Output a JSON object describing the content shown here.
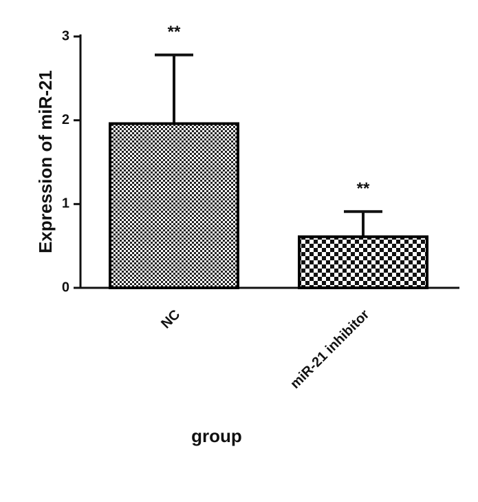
{
  "chart_data": {
    "type": "bar",
    "categories": [
      "NC",
      "miR-21 inhibitor"
    ],
    "values": [
      1.96,
      0.61
    ],
    "errors": [
      0.82,
      0.3
    ],
    "annotations": [
      "**",
      "**"
    ],
    "color": "#000000",
    "xlabel": "group",
    "ylabel": "Expression of miR-21",
    "ylim": [
      0,
      3
    ],
    "yticks": [
      0,
      1,
      2,
      3
    ],
    "grid": false
  }
}
